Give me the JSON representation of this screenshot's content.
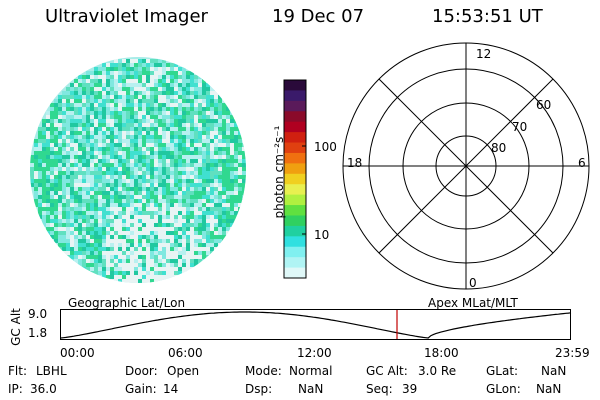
{
  "header": {
    "instrument": "Ultraviolet Imager",
    "date": "19 Dec 07",
    "time": "15:53:51 UT"
  },
  "colorbar": {
    "label": "photon cm⁻²s⁻¹",
    "ticks": [
      "100",
      "10"
    ],
    "colors": [
      "#2a0a3a",
      "#3a1a6a",
      "#5a1a5a",
      "#8a0a2a",
      "#b00020",
      "#d02010",
      "#e04010",
      "#f07010",
      "#f0a010",
      "#f0d020",
      "#e8f050",
      "#b0f040",
      "#60e040",
      "#30d060",
      "#20d0a0",
      "#30e0e0",
      "#80f0f0",
      "#b0f4f4",
      "#e0f8f8"
    ]
  },
  "polar": {
    "labels": {
      "top": "12",
      "bottom": "0",
      "left": "18",
      "right": "6"
    },
    "rings": [
      "60",
      "70",
      "80"
    ]
  },
  "track": {
    "left_caption": "Geographic Lat/Lon",
    "right_caption": "Apex MLat/MLT",
    "y_axis_label": "GC Alt",
    "y_ticks": [
      "9.0",
      "1.8"
    ],
    "x_ticks": [
      "00:00",
      "06:00",
      "12:00",
      "18:00",
      "23:59"
    ],
    "marker_color": "#c00000"
  },
  "info": {
    "row1": [
      {
        "label": "Flt:",
        "value": "LBHL"
      },
      {
        "label": "Door:",
        "value": "Open"
      },
      {
        "label": "Mode:",
        "value": "Normal"
      },
      {
        "label": "GC Alt:",
        "value": "3.0 Re"
      },
      {
        "label": "GLat:",
        "value": "NaN"
      }
    ],
    "row2": [
      {
        "label": "IP:",
        "value": "36.0"
      },
      {
        "label": "Gain:",
        "value": "14"
      },
      {
        "label": "Dsp:",
        "value": "NaN"
      },
      {
        "label": "Seq:",
        "value": "39"
      },
      {
        "label": "GLon:",
        "value": "NaN"
      }
    ]
  },
  "disk_colors": [
    "#b8f0f0",
    "#40e0d0",
    "#80e8e0",
    "#30d890",
    "#e8f4f4",
    "#60e0c0",
    "#20c8a0"
  ]
}
